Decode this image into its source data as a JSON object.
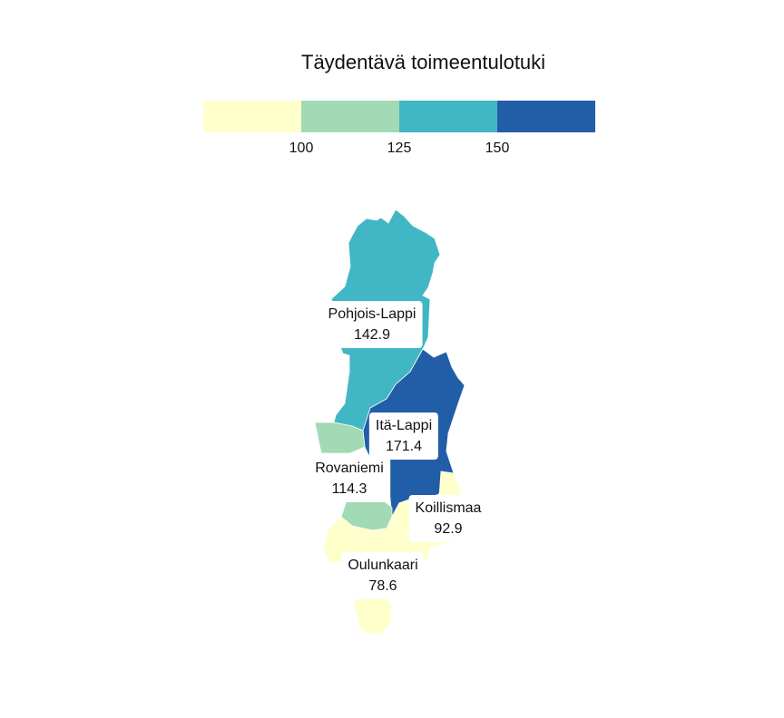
{
  "title": "Täydentävä toimeentulotuki",
  "legend": {
    "colors": [
      "#ffffcc",
      "#a1dab4",
      "#41b6c4",
      "#225ea8"
    ],
    "ticks": [
      "100",
      "125",
      "150"
    ]
  },
  "regions": [
    {
      "name": "Pohjois-Lappi",
      "value": "142.9",
      "color": "#41b6c4"
    },
    {
      "name": "Itä-Lappi",
      "value": "171.4",
      "color": "#225ea8"
    },
    {
      "name": "Rovaniemi",
      "value": "114.3",
      "color": "#a1dab4"
    },
    {
      "name": "Koillismaa",
      "value": "92.9",
      "color": "#ffffcc"
    },
    {
      "name": "Oulunkaari",
      "value": "78.6",
      "color": "#ffffcc"
    }
  ]
}
